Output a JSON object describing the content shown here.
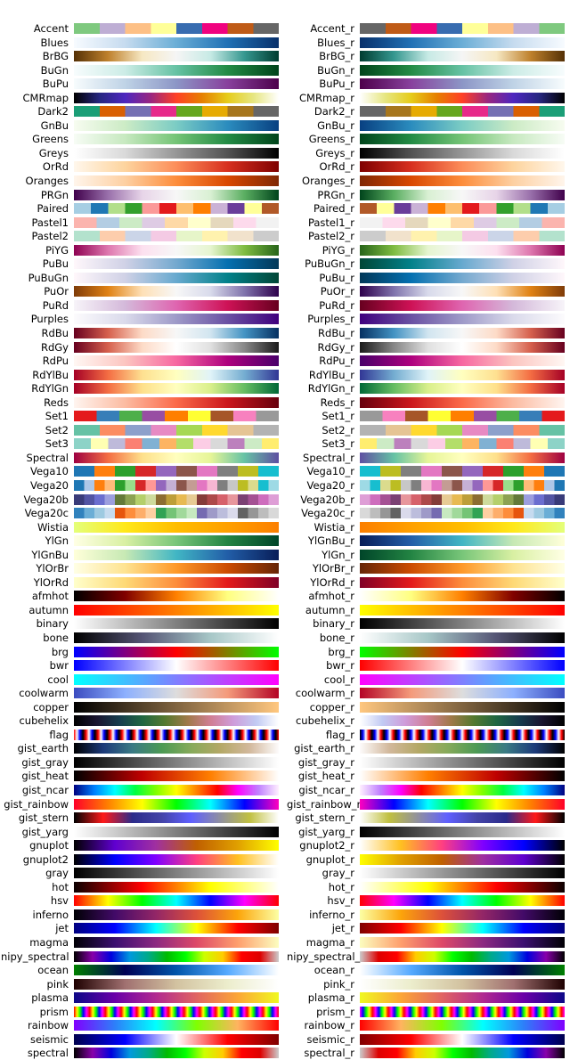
{
  "chart_data": {
    "type": "colormap_table",
    "left_column": [
      "Accent",
      "Blues",
      "BrBG",
      "BuGn",
      "BuPu",
      "CMRmap",
      "Dark2",
      "GnBu",
      "Greens",
      "Greys",
      "OrRd",
      "Oranges",
      "PRGn",
      "Paired",
      "Pastel1",
      "Pastel2",
      "PiYG",
      "PuBu",
      "PuBuGn",
      "PuOr",
      "PuRd",
      "Purples",
      "RdBu",
      "RdGy",
      "RdPu",
      "RdYlBu",
      "RdYlGn",
      "Reds",
      "Set1",
      "Set2",
      "Set3",
      "Spectral",
      "Vega10",
      "Vega20",
      "Vega20b",
      "Vega20c",
      "Wistia",
      "YlGn",
      "YlGnBu",
      "YlOrBr",
      "YlOrRd",
      "afmhot",
      "autumn",
      "binary",
      "bone",
      "brg",
      "bwr",
      "cool",
      "coolwarm",
      "copper",
      "cubehelix",
      "flag",
      "gist_earth",
      "gist_gray",
      "gist_heat",
      "gist_ncar",
      "gist_rainbow",
      "gist_stern",
      "gist_yarg",
      "gnuplot",
      "gnuplot2",
      "gray",
      "hot",
      "hsv",
      "inferno",
      "jet",
      "magma",
      "nipy_spectral",
      "ocean",
      "pink",
      "plasma",
      "prism",
      "rainbow",
      "seismic",
      "spectral"
    ],
    "right_column": [
      "Accent_r",
      "Blues_r",
      "BrBG_r",
      "BuGn_r",
      "BuPu_r",
      "CMRmap_r",
      "Dark2_r",
      "GnBu_r",
      "Greens_r",
      "Greys_r",
      "OrRd_r",
      "Oranges_r",
      "PRGn_r",
      "Paired_r",
      "Pastel1_r",
      "Pastel2_r",
      "PiYG_r",
      "PuBuGn_r",
      "PuBu_r",
      "PuOr_r",
      "PuRd_r",
      "Purples_r",
      "RdBu_r",
      "RdGy_r",
      "RdPu_r",
      "RdYlBu_r",
      "RdYlGn_r",
      "Reds_r",
      "Set1_r",
      "Set2_r",
      "Set3_r",
      "Spectral_r",
      "Vega10_r",
      "Vega20_r",
      "Vega20b_r",
      "Vega20c_r",
      "Wistia_r",
      "YlGnBu_r",
      "YlGn_r",
      "YlOrBr_r",
      "YlOrRd_r",
      "afmhot_r",
      "autumn_r",
      "binary_r",
      "bone_r",
      "brg_r",
      "bwr_r",
      "cool_r",
      "coolwarm_r",
      "copper_r",
      "cubehelix_r",
      "flag_r",
      "gist_earth_r",
      "gist_gray_r",
      "gist_heat_r",
      "gist_ncar_r",
      "gist_rainbow_r",
      "gist_stern_r",
      "gist_yarg_r",
      "gnuplot2_r",
      "gnuplot_r",
      "gray_r",
      "hot_r",
      "hsv_r",
      "inferno_r",
      "jet_r",
      "magma_r",
      "nipy_spectral_r",
      "ocean_r",
      "pink_r",
      "plasma_r",
      "prism_r",
      "rainbow_r",
      "seismic_r",
      "spectral_r"
    ],
    "colormaps": {
      "Accent": {
        "kind": "discrete",
        "colors": [
          "#7fc97f",
          "#beaed4",
          "#fdc086",
          "#ffff99",
          "#386cb0",
          "#f0027f",
          "#bf5b17",
          "#666666"
        ]
      },
      "Blues": {
        "kind": "gradient",
        "colors": [
          "#f7fbff",
          "#c6dbef",
          "#6baed6",
          "#2171b5",
          "#08306b"
        ]
      },
      "BrBG": {
        "kind": "gradient",
        "colors": [
          "#543005",
          "#bf812d",
          "#f6e8c3",
          "#f5f5f5",
          "#c7eae5",
          "#35978f",
          "#003c30"
        ]
      },
      "BuGn": {
        "kind": "gradient",
        "colors": [
          "#f7fcfd",
          "#ccece6",
          "#66c2a4",
          "#238b45",
          "#00441b"
        ]
      },
      "BuPu": {
        "kind": "gradient",
        "colors": [
          "#f7fcfd",
          "#bfd3e6",
          "#8c96c6",
          "#88419d",
          "#4d004b"
        ]
      },
      "CMRmap": {
        "kind": "gradient",
        "colors": [
          "#000000",
          "#262680",
          "#4d26bf",
          "#992680",
          "#ff4026",
          "#e68000",
          "#e6cc1a",
          "#e6e680",
          "#ffffff"
        ]
      },
      "Dark2": {
        "kind": "discrete",
        "colors": [
          "#1b9e77",
          "#d95f02",
          "#7570b3",
          "#e7298a",
          "#66a61e",
          "#e6ab02",
          "#a6761d",
          "#666666"
        ]
      },
      "GnBu": {
        "kind": "gradient",
        "colors": [
          "#f7fcf0",
          "#ccebc5",
          "#7bccc4",
          "#2b8cbe",
          "#084081"
        ]
      },
      "Greens": {
        "kind": "gradient",
        "colors": [
          "#f7fcf5",
          "#c7e9c0",
          "#74c476",
          "#238b45",
          "#00441b"
        ]
      },
      "Greys": {
        "kind": "gradient",
        "colors": [
          "#ffffff",
          "#d9d9d9",
          "#969696",
          "#525252",
          "#000000"
        ]
      },
      "OrRd": {
        "kind": "gradient",
        "colors": [
          "#fff7ec",
          "#fdd49e",
          "#fc8d59",
          "#d7301f",
          "#7f0000"
        ]
      },
      "Oranges": {
        "kind": "gradient",
        "colors": [
          "#fff5eb",
          "#fdd0a2",
          "#fd8d3c",
          "#d94801",
          "#7f2704"
        ]
      },
      "PRGn": {
        "kind": "gradient",
        "colors": [
          "#40004b",
          "#9970ab",
          "#e7d4e8",
          "#f7f7f7",
          "#d9f0d3",
          "#5aae61",
          "#00441b"
        ]
      },
      "Paired": {
        "kind": "discrete",
        "colors": [
          "#a6cee3",
          "#1f78b4",
          "#b2df8a",
          "#33a02c",
          "#fb9a99",
          "#e31a1c",
          "#fdbf6f",
          "#ff7f00",
          "#cab2d6",
          "#6a3d9a",
          "#ffff99",
          "#b15928"
        ]
      },
      "Pastel1": {
        "kind": "discrete",
        "colors": [
          "#fbb4ae",
          "#b3cde3",
          "#ccebc5",
          "#decbe4",
          "#fed9a6",
          "#ffffcc",
          "#e5d8bd",
          "#fddaec",
          "#f2f2f2"
        ]
      },
      "Pastel2": {
        "kind": "discrete",
        "colors": [
          "#b3e2cd",
          "#fdcdac",
          "#cbd5e8",
          "#f4cae4",
          "#e6f5c9",
          "#fff2ae",
          "#f1e2cc",
          "#cccccc"
        ]
      },
      "PiYG": {
        "kind": "gradient",
        "colors": [
          "#8e0152",
          "#de77ae",
          "#fde0ef",
          "#f7f7f7",
          "#e6f5d0",
          "#7fbc41",
          "#276419"
        ]
      },
      "PuBu": {
        "kind": "gradient",
        "colors": [
          "#fff7fb",
          "#d0d1e6",
          "#74a9cf",
          "#0570b0",
          "#023858"
        ]
      },
      "PuBuGn": {
        "kind": "gradient",
        "colors": [
          "#fff7fb",
          "#d0d1e6",
          "#67a9cf",
          "#02818a",
          "#014636"
        ]
      },
      "PuOr": {
        "kind": "gradient",
        "colors": [
          "#7f3b08",
          "#e08214",
          "#fee0b6",
          "#f7f7f7",
          "#d8daeb",
          "#8073ac",
          "#2d004b"
        ]
      },
      "PuRd": {
        "kind": "gradient",
        "colors": [
          "#f7f4f9",
          "#d4b9da",
          "#df65b0",
          "#ce1256",
          "#67001f"
        ]
      },
      "Purples": {
        "kind": "gradient",
        "colors": [
          "#fcfbfd",
          "#dadaeb",
          "#9e9ac8",
          "#6a51a3",
          "#3f007d"
        ]
      },
      "RdBu": {
        "kind": "gradient",
        "colors": [
          "#67001f",
          "#d6604d",
          "#fddbc7",
          "#f7f7f7",
          "#d1e5f0",
          "#4393c3",
          "#053061"
        ]
      },
      "RdGy": {
        "kind": "gradient",
        "colors": [
          "#67001f",
          "#d6604d",
          "#fddbc7",
          "#ffffff",
          "#e0e0e0",
          "#878787",
          "#1a1a1a"
        ]
      },
      "RdPu": {
        "kind": "gradient",
        "colors": [
          "#fff7f3",
          "#fcc5c0",
          "#f768a1",
          "#ae017e",
          "#49006a"
        ]
      },
      "RdYlBu": {
        "kind": "gradient",
        "colors": [
          "#a50026",
          "#f46d43",
          "#fee090",
          "#ffffbf",
          "#e0f3f8",
          "#74add1",
          "#313695"
        ]
      },
      "RdYlGn": {
        "kind": "gradient",
        "colors": [
          "#a50026",
          "#f46d43",
          "#fee08b",
          "#ffffbf",
          "#d9ef8b",
          "#66bd63",
          "#006837"
        ]
      },
      "Reds": {
        "kind": "gradient",
        "colors": [
          "#fff5f0",
          "#fcbba1",
          "#fb6a4a",
          "#cb181d",
          "#67000d"
        ]
      },
      "Set1": {
        "kind": "discrete",
        "colors": [
          "#e41a1c",
          "#377eb8",
          "#4daf4a",
          "#984ea3",
          "#ff7f00",
          "#ffff33",
          "#a65628",
          "#f781bf",
          "#999999"
        ]
      },
      "Set2": {
        "kind": "discrete",
        "colors": [
          "#66c2a5",
          "#fc8d62",
          "#8da0cb",
          "#e78ac3",
          "#a6d854",
          "#ffd92f",
          "#e5c494",
          "#b3b3b3"
        ]
      },
      "Set3": {
        "kind": "discrete",
        "colors": [
          "#8dd3c7",
          "#ffffb3",
          "#bebada",
          "#fb8072",
          "#80b1d3",
          "#fdb462",
          "#b3de69",
          "#fccde5",
          "#d9d9d9",
          "#bc80bd",
          "#ccebc5",
          "#ffed6f"
        ]
      },
      "Spectral": {
        "kind": "gradient",
        "colors": [
          "#9e0142",
          "#f46d43",
          "#fee08b",
          "#ffffbf",
          "#e6f598",
          "#66c2a5",
          "#5e4fa2"
        ]
      },
      "Vega10": {
        "kind": "discrete",
        "colors": [
          "#1f77b4",
          "#ff7f0e",
          "#2ca02c",
          "#d62728",
          "#9467bd",
          "#8c564b",
          "#e377c2",
          "#7f7f7f",
          "#bcbd22",
          "#17becf"
        ]
      },
      "Vega20": {
        "kind": "discrete",
        "colors": [
          "#1f77b4",
          "#aec7e8",
          "#ff7f0e",
          "#ffbb78",
          "#2ca02c",
          "#98df8a",
          "#d62728",
          "#ff9896",
          "#9467bd",
          "#c5b0d5",
          "#8c564b",
          "#c49c94",
          "#e377c2",
          "#f7b6d2",
          "#7f7f7f",
          "#c7c7c7",
          "#bcbd22",
          "#dbdb8d",
          "#17becf",
          "#9edae5"
        ]
      },
      "Vega20b": {
        "kind": "discrete",
        "colors": [
          "#393b79",
          "#5254a3",
          "#6b6ecf",
          "#9c9ede",
          "#637939",
          "#8ca252",
          "#b5cf6b",
          "#cedb9c",
          "#8c6d31",
          "#bd9e39",
          "#e7ba52",
          "#e7cb94",
          "#843c39",
          "#ad494a",
          "#d6616b",
          "#e7969c",
          "#7b4173",
          "#a55194",
          "#ce6dbd",
          "#de9ed6"
        ]
      },
      "Vega20c": {
        "kind": "discrete",
        "colors": [
          "#3182bd",
          "#6baed6",
          "#9ecae1",
          "#c6dbef",
          "#e6550d",
          "#fd8d3c",
          "#fdae6b",
          "#fdd0a2",
          "#31a354",
          "#74c476",
          "#a1d99b",
          "#c7e9c0",
          "#756bb1",
          "#9e9ac8",
          "#bcbddc",
          "#dadaeb",
          "#636363",
          "#969696",
          "#bdbdbd",
          "#d9d9d9"
        ]
      },
      "Wistia": {
        "kind": "gradient",
        "colors": [
          "#e4ff7a",
          "#ffe81a",
          "#ffbd00",
          "#ffa000",
          "#fc7f00"
        ]
      },
      "YlGn": {
        "kind": "gradient",
        "colors": [
          "#ffffe5",
          "#d9f0a3",
          "#78c679",
          "#238443",
          "#004529"
        ]
      },
      "YlGnBu": {
        "kind": "gradient",
        "colors": [
          "#ffffd9",
          "#c7e9b4",
          "#41b6c4",
          "#225ea8",
          "#081d58"
        ]
      },
      "YlOrBr": {
        "kind": "gradient",
        "colors": [
          "#ffffe5",
          "#fee391",
          "#fe9929",
          "#cc4c02",
          "#662506"
        ]
      },
      "YlOrRd": {
        "kind": "gradient",
        "colors": [
          "#ffffcc",
          "#fed976",
          "#fd8d3c",
          "#e31a1c",
          "#800026"
        ]
      },
      "afmhot": {
        "kind": "gradient",
        "colors": [
          "#000000",
          "#800000",
          "#ff8000",
          "#ffff80",
          "#ffffff"
        ]
      },
      "autumn": {
        "kind": "gradient",
        "colors": [
          "#ff0000",
          "#ffff00"
        ]
      },
      "binary": {
        "kind": "gradient",
        "colors": [
          "#ffffff",
          "#000000"
        ]
      },
      "bone": {
        "kind": "gradient",
        "colors": [
          "#000000",
          "#545474",
          "#a7c7c7",
          "#ffffff"
        ]
      },
      "brg": {
        "kind": "gradient",
        "colors": [
          "#0000ff",
          "#ff0000",
          "#00ff00"
        ]
      },
      "bwr": {
        "kind": "gradient",
        "colors": [
          "#0000ff",
          "#ffffff",
          "#ff0000"
        ]
      },
      "cool": {
        "kind": "gradient",
        "colors": [
          "#00ffff",
          "#ff00ff"
        ]
      },
      "coolwarm": {
        "kind": "gradient",
        "colors": [
          "#3b4cc0",
          "#8db0fe",
          "#dddddd",
          "#f49a7b",
          "#b40426"
        ]
      },
      "copper": {
        "kind": "gradient",
        "colors": [
          "#000000",
          "#ffc77f"
        ]
      },
      "cubehelix": {
        "kind": "gradient",
        "colors": [
          "#000000",
          "#1a1530",
          "#163d4e",
          "#1f6642",
          "#54792f",
          "#a07949",
          "#d07e93",
          "#cf9cda",
          "#c1caf3",
          "#ffffff"
        ]
      },
      "flag": {
        "kind": "periodic",
        "periods": 17,
        "colors": [
          "#ff0000",
          "#ffffff",
          "#0000ff",
          "#000000"
        ]
      },
      "gist_earth": {
        "kind": "gradient",
        "colors": [
          "#000000",
          "#1c3a7a",
          "#3a7a84",
          "#4c9a54",
          "#86aa5a",
          "#b4a866",
          "#d2b89c",
          "#fdfbfb"
        ]
      },
      "gist_gray": {
        "kind": "gradient",
        "colors": [
          "#000000",
          "#ffffff"
        ]
      },
      "gist_heat": {
        "kind": "gradient",
        "colors": [
          "#000000",
          "#bf0000",
          "#ff7f00",
          "#ffffff"
        ]
      },
      "gist_ncar": {
        "kind": "gradient",
        "colors": [
          "#000080",
          "#0080ff",
          "#00ffff",
          "#00ff40",
          "#80ff00",
          "#ffff00",
          "#ff8000",
          "#ff0000",
          "#ff00ff",
          "#c080ff",
          "#fff0ff"
        ]
      },
      "gist_rainbow": {
        "kind": "gradient",
        "colors": [
          "#ff0029",
          "#ff8000",
          "#ffff00",
          "#00ff00",
          "#00ffff",
          "#0000ff",
          "#ff00bf"
        ]
      },
      "gist_stern": {
        "kind": "gradient",
        "colors": [
          "#000000",
          "#ff1a1a",
          "#2b2b8a",
          "#4444a8",
          "#6060ff",
          "#9090a0",
          "#c0c040",
          "#ffffff"
        ]
      },
      "gist_yarg": {
        "kind": "gradient",
        "colors": [
          "#ffffff",
          "#000000"
        ]
      },
      "gnuplot": {
        "kind": "gradient",
        "colors": [
          "#000000",
          "#6000d0",
          "#a030a0",
          "#c06000",
          "#e0a000",
          "#ffff00"
        ]
      },
      "gnuplot2": {
        "kind": "gradient",
        "colors": [
          "#000000",
          "#0000ff",
          "#8000ff",
          "#ff4080",
          "#ffc020",
          "#ffffff"
        ]
      },
      "gray": {
        "kind": "gradient",
        "colors": [
          "#000000",
          "#ffffff"
        ]
      },
      "hot": {
        "kind": "gradient",
        "colors": [
          "#0b0000",
          "#ff0000",
          "#ffff00",
          "#ffffff"
        ]
      },
      "hsv": {
        "kind": "gradient",
        "colors": [
          "#ff0000",
          "#ffff00",
          "#00ff00",
          "#00ffff",
          "#0000ff",
          "#ff00ff",
          "#ff0000"
        ]
      },
      "inferno": {
        "kind": "gradient",
        "colors": [
          "#000004",
          "#420a68",
          "#932667",
          "#dd513a",
          "#fca50a",
          "#fcffa4"
        ]
      },
      "jet": {
        "kind": "gradient",
        "colors": [
          "#00007f",
          "#0000ff",
          "#00ffff",
          "#ffff00",
          "#ff0000",
          "#7f0000"
        ]
      },
      "magma": {
        "kind": "gradient",
        "colors": [
          "#000004",
          "#3b0f70",
          "#8c2981",
          "#de4968",
          "#fe9f6d",
          "#fcfdbf"
        ]
      },
      "nipy_spectral": {
        "kind": "gradient",
        "colors": [
          "#000000",
          "#8800aa",
          "#0000dd",
          "#0099dd",
          "#00aa88",
          "#00bb00",
          "#00ff00",
          "#ccff00",
          "#ffcc00",
          "#ff0000",
          "#dd0000",
          "#cccccc"
        ]
      },
      "ocean": {
        "kind": "gradient",
        "colors": [
          "#008000",
          "#000055",
          "#0055aa",
          "#55aaff",
          "#ffffff"
        ]
      },
      "pink": {
        "kind": "gradient",
        "colors": [
          "#1e0000",
          "#a07070",
          "#d2c2a0",
          "#ecedcc",
          "#ffffff"
        ]
      },
      "plasma": {
        "kind": "gradient",
        "colors": [
          "#0d0887",
          "#6a00a8",
          "#b12a90",
          "#e16462",
          "#fca636",
          "#f0f921"
        ]
      },
      "prism": {
        "kind": "periodic",
        "periods": 13,
        "colors": [
          "#ff0000",
          "#ffff00",
          "#00ff00",
          "#0000ff",
          "#ff00ff"
        ]
      },
      "rainbow": {
        "kind": "gradient",
        "colors": [
          "#8000ff",
          "#2d7ff9",
          "#00ffff",
          "#80ff00",
          "#ffb360",
          "#ff0000"
        ]
      },
      "seismic": {
        "kind": "gradient",
        "colors": [
          "#00004d",
          "#0000ff",
          "#ffffff",
          "#ff0000",
          "#800000"
        ]
      },
      "spectral": {
        "kind": "gradient",
        "colors": [
          "#000000",
          "#8800aa",
          "#0000dd",
          "#0099dd",
          "#00aa88",
          "#00bb00",
          "#00ff00",
          "#ccff00",
          "#ffcc00",
          "#ff0000",
          "#dd0000",
          "#cccccc"
        ]
      }
    }
  }
}
